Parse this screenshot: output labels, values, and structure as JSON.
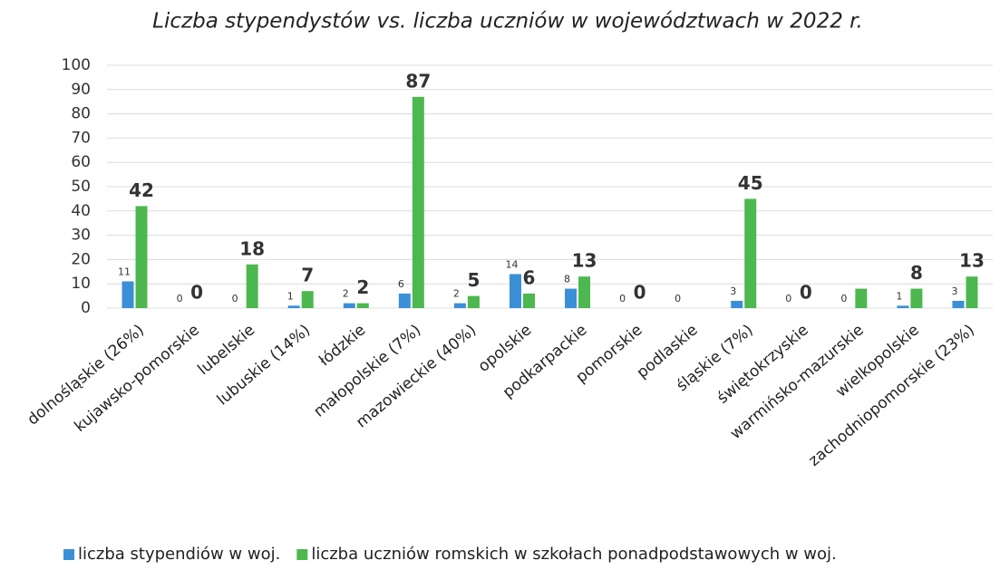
{
  "chart_data": {
    "type": "bar",
    "title": "Liczba stypendystów vs. liczba uczniów w województwach w 2022 r.",
    "categories": [
      "dolnośląskie (26%)",
      "kujawsko-pomorskie",
      "lubelskie",
      "lubuskie (14%)",
      "łódzkie",
      "małopolskie (7%)",
      "mazowieckie (40%)",
      "opolskie",
      "podkarpackie",
      "pomorskie",
      "podlaskie",
      "śląskie (7%)",
      "świętokrzyskie",
      "warmińsko-mazurskie",
      "wielkopolskie",
      "zachodniopomorskie (23%)"
    ],
    "series": [
      {
        "name": "liczba stypendiów w woj.",
        "color": "#3b8fd6",
        "values": [
          11,
          0,
          0,
          1,
          2,
          6,
          2,
          14,
          8,
          0,
          0,
          3,
          0,
          0,
          1,
          3
        ]
      },
      {
        "name": "liczba uczniów romskich w szkołach ponadpodstawowych w woj.",
        "color": "#4cb84f",
        "values": [
          42,
          0,
          18,
          7,
          2,
          87,
          5,
          6,
          13,
          0,
          null,
          45,
          0,
          8,
          8,
          13
        ],
        "value_labels": [
          "42",
          "0",
          "18",
          "7",
          "2",
          "87",
          "5",
          "6",
          "13",
          "0",
          null,
          "45",
          "0",
          null,
          "8",
          "13"
        ]
      }
    ],
    "ylim": [
      0,
      100
    ],
    "yticks": [
      0,
      10,
      20,
      30,
      40,
      50,
      60,
      70,
      80,
      90,
      100
    ],
    "grid": true,
    "legend": "bottom"
  }
}
